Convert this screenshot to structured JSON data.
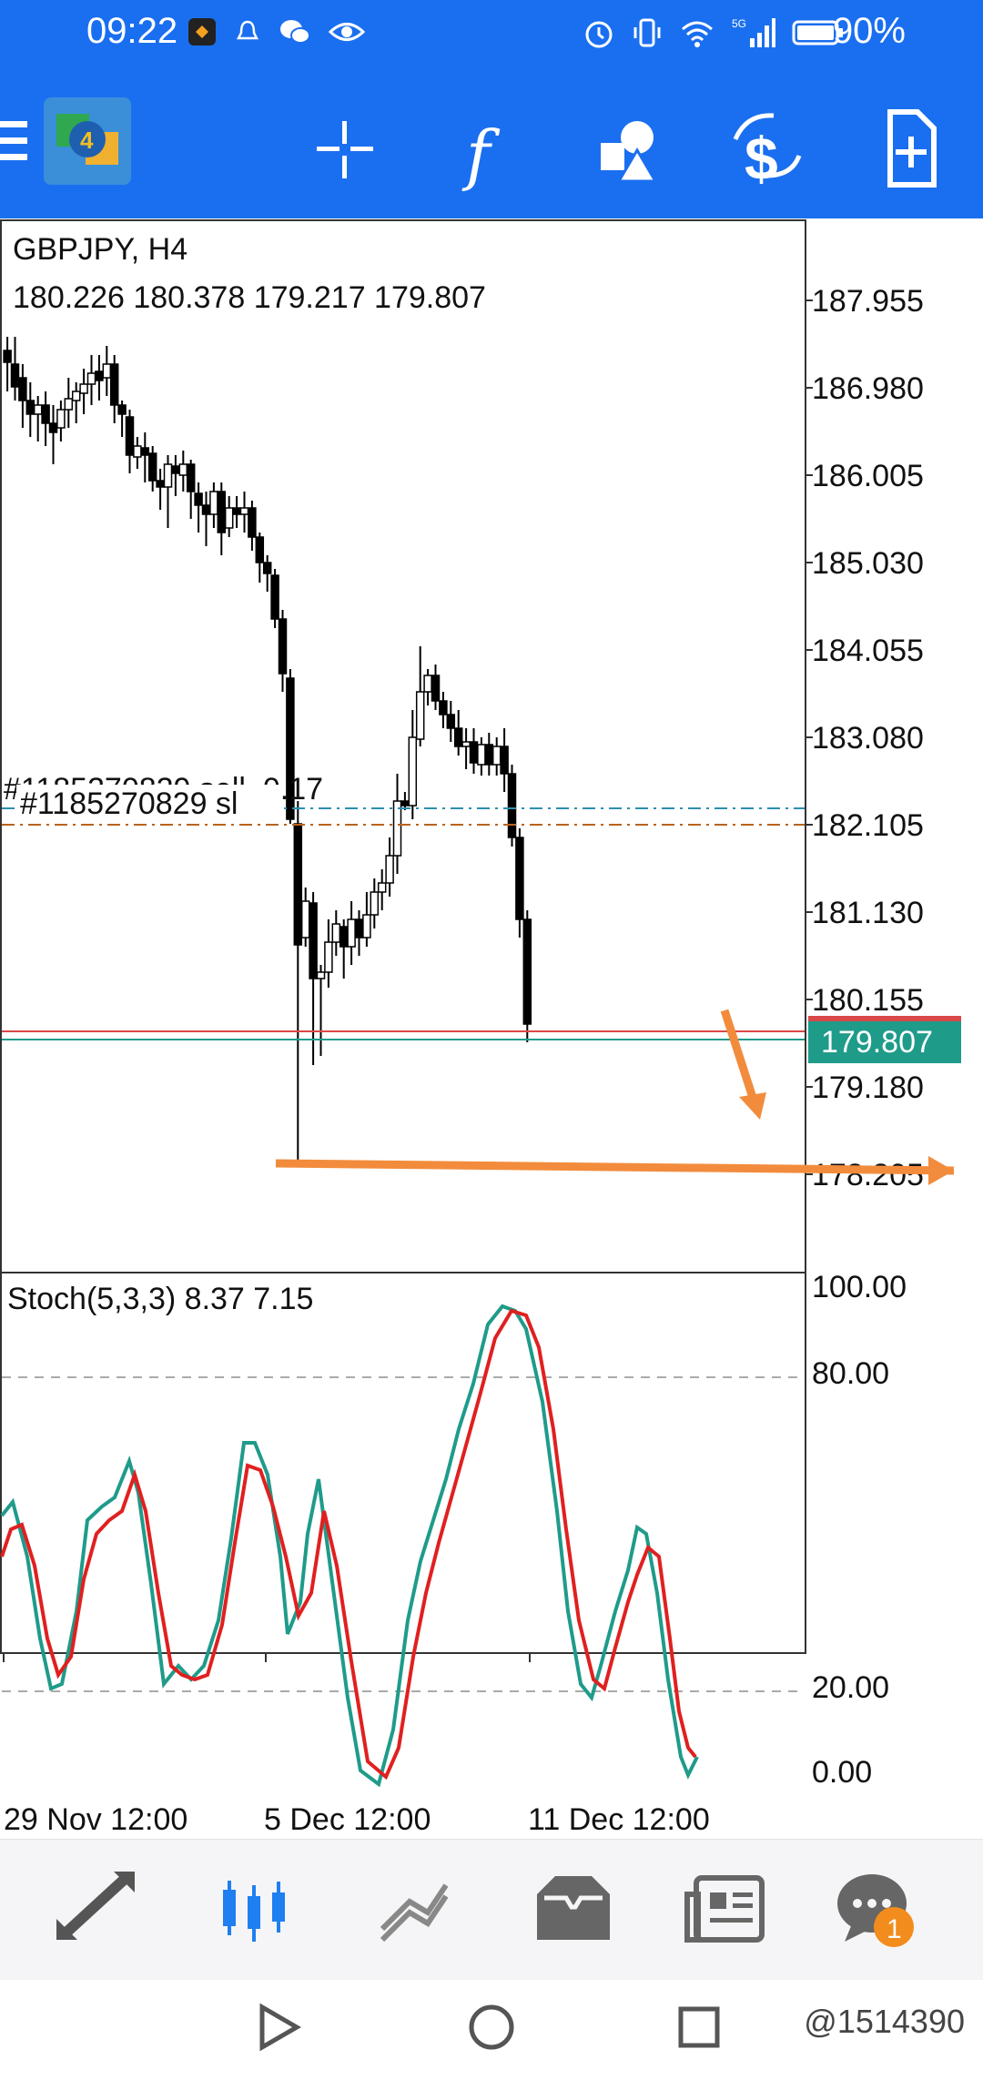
{
  "status_bar": {
    "time": "09:22",
    "battery": "90%"
  },
  "toolbar": {
    "items": [
      {
        "name": "menu-icon"
      },
      {
        "name": "app-logo"
      },
      {
        "name": "crosshair-icon"
      },
      {
        "name": "indicators-icon"
      },
      {
        "name": "objects-icon"
      },
      {
        "name": "trade-icon"
      },
      {
        "name": "new-order-icon"
      }
    ]
  },
  "chart": {
    "symbol_line": "GBPJPY, H4",
    "ohlc_line": "180.226 180.378 179.217 179.807",
    "order_line_label": "#1185270829 sell, 0.17",
    "sl_line_label": "#1185270829 sl",
    "current_price": "179.807",
    "price_scale": [
      "187.955",
      "186.980",
      "186.005",
      "185.030",
      "184.055",
      "183.080",
      "182.105",
      "181.130",
      "180.155",
      "179.180",
      "178.205"
    ],
    "colors": {
      "bull_candle": "#ffffff",
      "bear_candle": "#000000",
      "order_line": "#b8641f",
      "sl_line": "#2b8fb0",
      "bid_line": "#d94848",
      "ask_line": "#1f9b8a",
      "price_tag": "#1f9b8a",
      "annotation": "#f28c3c"
    }
  },
  "indicator": {
    "label": "Stoch(5,3,3) 8.37 7.15",
    "levels": [
      "100.00",
      "80.00",
      "20.00",
      "0.00"
    ],
    "main_color": "#1f9b8a",
    "signal_color": "#e02020"
  },
  "time_axis": [
    "29 Nov 12:00",
    "5 Dec 12:00",
    "11 Dec 12:00"
  ],
  "bottom_nav": [
    {
      "name": "quotes-icon",
      "active": false
    },
    {
      "name": "chart-icon",
      "active": true
    },
    {
      "name": "trade-icon",
      "active": false
    },
    {
      "name": "history-icon",
      "active": false
    },
    {
      "name": "news-icon",
      "active": false
    },
    {
      "name": "messages-icon",
      "active": false,
      "badge": "1"
    }
  ],
  "watermark": "@1514390"
}
